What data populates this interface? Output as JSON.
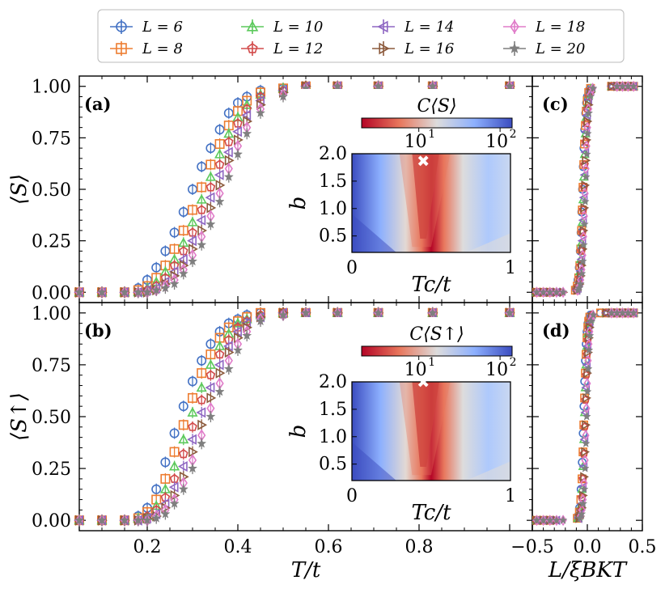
{
  "legend": {
    "entries": [
      {
        "label": "L = 6",
        "color": "#4472C4",
        "marker": "circle"
      },
      {
        "label": "L = 8",
        "color": "#ED7D31",
        "marker": "square"
      },
      {
        "label": "L = 10",
        "color": "#5CC95C",
        "marker": "triangle-up"
      },
      {
        "label": "L = 12",
        "color": "#D24B4B",
        "marker": "pentagon"
      },
      {
        "label": "L = 14",
        "color": "#8E66C2",
        "marker": "triangle-left"
      },
      {
        "label": "L = 16",
        "color": "#8C5A3C",
        "marker": "triangle-right"
      },
      {
        "label": "L = 18",
        "color": "#E07CC9",
        "marker": "diamond"
      },
      {
        "label": "L = 20",
        "color": "#7F7F7F",
        "marker": "star"
      }
    ]
  },
  "chart_data": [
    {
      "id": "a",
      "type": "scatter",
      "panel_label": "(a)",
      "ylabel": "⟨S⟩",
      "xlabel": "T/t",
      "xlim": [
        0.05,
        1.05
      ],
      "ylim": [
        -0.05,
        1.05
      ],
      "xticks": [
        "0.2",
        "0.4",
        "0.6",
        "0.8"
      ],
      "yticks": [
        "0.00",
        "0.25",
        "0.50",
        "0.75",
        "1.00"
      ],
      "series": [
        {
          "name": "L = 6",
          "x": [
            0.05,
            0.1,
            0.15,
            0.18,
            0.2,
            0.22,
            0.24,
            0.26,
            0.28,
            0.3,
            0.32,
            0.34,
            0.36,
            0.38,
            0.4,
            0.42,
            0.45,
            0.5,
            0.55,
            0.62,
            0.71,
            0.83,
            1.0
          ],
          "y": [
            0.0,
            0.0,
            0.0,
            0.02,
            0.06,
            0.12,
            0.2,
            0.29,
            0.39,
            0.5,
            0.61,
            0.7,
            0.79,
            0.87,
            0.92,
            0.95,
            0.98,
            0.99,
            1.0,
            1.0,
            1.0,
            1.0,
            1.0
          ]
        },
        {
          "name": "L = 8",
          "x": [
            0.05,
            0.1,
            0.15,
            0.18,
            0.2,
            0.22,
            0.24,
            0.26,
            0.28,
            0.3,
            0.32,
            0.34,
            0.36,
            0.38,
            0.4,
            0.42,
            0.45,
            0.5,
            0.55,
            0.62,
            0.71,
            0.83,
            1.0
          ],
          "y": [
            0.0,
            0.0,
            0.0,
            0.01,
            0.03,
            0.07,
            0.13,
            0.21,
            0.3,
            0.4,
            0.51,
            0.62,
            0.72,
            0.81,
            0.88,
            0.93,
            0.97,
            0.99,
            1.0,
            1.0,
            1.0,
            1.0,
            1.0
          ]
        },
        {
          "name": "L = 10",
          "x": [
            0.05,
            0.1,
            0.15,
            0.18,
            0.2,
            0.22,
            0.24,
            0.26,
            0.28,
            0.3,
            0.32,
            0.34,
            0.36,
            0.38,
            0.4,
            0.42,
            0.45,
            0.5,
            0.55,
            0.62,
            0.71,
            0.83,
            1.0
          ],
          "y": [
            0.0,
            0.0,
            0.0,
            0.0,
            0.02,
            0.05,
            0.1,
            0.16,
            0.24,
            0.34,
            0.45,
            0.56,
            0.67,
            0.77,
            0.85,
            0.91,
            0.96,
            0.99,
            1.0,
            1.0,
            1.0,
            1.0,
            1.0
          ]
        },
        {
          "name": "L = 12",
          "x": [
            0.05,
            0.1,
            0.15,
            0.18,
            0.2,
            0.22,
            0.24,
            0.26,
            0.28,
            0.3,
            0.32,
            0.34,
            0.36,
            0.38,
            0.4,
            0.42,
            0.45,
            0.5,
            0.55,
            0.62,
            0.71,
            0.83,
            1.0
          ],
          "y": [
            0.0,
            0.0,
            0.0,
            0.0,
            0.01,
            0.03,
            0.07,
            0.13,
            0.2,
            0.29,
            0.4,
            0.51,
            0.62,
            0.73,
            0.82,
            0.89,
            0.95,
            0.98,
            1.0,
            1.0,
            1.0,
            1.0,
            1.0
          ]
        },
        {
          "name": "L = 14",
          "x": [
            0.05,
            0.1,
            0.15,
            0.18,
            0.2,
            0.22,
            0.24,
            0.26,
            0.28,
            0.3,
            0.32,
            0.34,
            0.36,
            0.38,
            0.4,
            0.42,
            0.45,
            0.5,
            0.55,
            0.62,
            0.71,
            0.83,
            1.0
          ],
          "y": [
            0.0,
            0.0,
            0.0,
            0.0,
            0.01,
            0.02,
            0.05,
            0.1,
            0.16,
            0.25,
            0.35,
            0.46,
            0.57,
            0.68,
            0.78,
            0.86,
            0.93,
            0.98,
            1.0,
            1.0,
            1.0,
            1.0,
            1.0
          ]
        },
        {
          "name": "L = 16",
          "x": [
            0.05,
            0.1,
            0.15,
            0.18,
            0.2,
            0.22,
            0.24,
            0.26,
            0.28,
            0.3,
            0.32,
            0.34,
            0.36,
            0.38,
            0.4,
            0.42,
            0.45,
            0.5,
            0.55,
            0.62,
            0.71,
            0.83,
            1.0
          ],
          "y": [
            0.0,
            0.0,
            0.0,
            0.0,
            0.0,
            0.01,
            0.04,
            0.08,
            0.13,
            0.21,
            0.3,
            0.41,
            0.52,
            0.64,
            0.74,
            0.83,
            0.91,
            0.97,
            1.0,
            1.0,
            1.0,
            1.0,
            1.0
          ]
        },
        {
          "name": "L = 18",
          "x": [
            0.05,
            0.1,
            0.15,
            0.18,
            0.2,
            0.22,
            0.24,
            0.26,
            0.28,
            0.3,
            0.32,
            0.34,
            0.36,
            0.38,
            0.4,
            0.42,
            0.45,
            0.5,
            0.55,
            0.62,
            0.71,
            0.83,
            1.0
          ],
          "y": [
            0.0,
            0.0,
            0.0,
            0.0,
            0.0,
            0.01,
            0.03,
            0.06,
            0.11,
            0.18,
            0.27,
            0.37,
            0.48,
            0.6,
            0.71,
            0.8,
            0.89,
            0.96,
            0.99,
            1.0,
            1.0,
            1.0,
            1.0
          ]
        },
        {
          "name": "L = 20",
          "x": [
            0.05,
            0.1,
            0.15,
            0.18,
            0.2,
            0.22,
            0.24,
            0.26,
            0.28,
            0.3,
            0.32,
            0.34,
            0.36,
            0.38,
            0.4,
            0.42,
            0.45,
            0.5,
            0.55,
            0.62,
            0.71,
            0.83,
            1.0
          ],
          "y": [
            0.0,
            0.0,
            0.0,
            0.0,
            0.0,
            0.01,
            0.02,
            0.04,
            0.09,
            0.15,
            0.23,
            0.33,
            0.44,
            0.56,
            0.67,
            0.77,
            0.87,
            0.95,
            0.99,
            1.0,
            1.0,
            1.0,
            1.0
          ]
        }
      ]
    },
    {
      "id": "b",
      "type": "scatter",
      "panel_label": "(b)",
      "ylabel": "⟨S↑⟩",
      "xlabel": "T/t",
      "xlim": [
        0.05,
        1.05
      ],
      "ylim": [
        -0.05,
        1.05
      ],
      "xticks": [
        "0.2",
        "0.4",
        "0.6",
        "0.8"
      ],
      "yticks": [
        "0.00",
        "0.25",
        "0.50",
        "0.75",
        "1.00"
      ],
      "series": [
        {
          "name": "L = 6",
          "x": [
            0.05,
            0.1,
            0.15,
            0.18,
            0.2,
            0.22,
            0.24,
            0.26,
            0.28,
            0.3,
            0.32,
            0.34,
            0.36,
            0.38,
            0.4,
            0.42,
            0.45,
            0.5,
            0.55,
            0.62,
            0.71,
            0.83,
            1.0
          ],
          "y": [
            0.0,
            0.0,
            0.0,
            0.02,
            0.06,
            0.15,
            0.28,
            0.42,
            0.55,
            0.67,
            0.77,
            0.85,
            0.91,
            0.95,
            0.97,
            0.99,
            1.0,
            1.0,
            1.0,
            1.0,
            1.0,
            1.0,
            1.0
          ]
        },
        {
          "name": "L = 8",
          "x": [
            0.05,
            0.1,
            0.15,
            0.18,
            0.2,
            0.22,
            0.24,
            0.26,
            0.28,
            0.3,
            0.32,
            0.34,
            0.36,
            0.38,
            0.4,
            0.42,
            0.45,
            0.5,
            0.55,
            0.62,
            0.71,
            0.83,
            1.0
          ],
          "y": [
            0.0,
            0.0,
            0.0,
            0.01,
            0.04,
            0.1,
            0.2,
            0.33,
            0.46,
            0.59,
            0.71,
            0.8,
            0.88,
            0.93,
            0.96,
            0.98,
            1.0,
            1.0,
            1.0,
            1.0,
            1.0,
            1.0,
            1.0
          ]
        },
        {
          "name": "L = 10",
          "x": [
            0.05,
            0.1,
            0.15,
            0.18,
            0.2,
            0.22,
            0.24,
            0.26,
            0.28,
            0.3,
            0.32,
            0.34,
            0.36,
            0.38,
            0.4,
            0.42,
            0.45,
            0.5,
            0.55,
            0.62,
            0.71,
            0.83,
            1.0
          ],
          "y": [
            0.0,
            0.0,
            0.0,
            0.01,
            0.02,
            0.07,
            0.15,
            0.26,
            0.39,
            0.52,
            0.64,
            0.75,
            0.84,
            0.9,
            0.95,
            0.97,
            0.99,
            1.0,
            1.0,
            1.0,
            1.0,
            1.0,
            1.0
          ]
        },
        {
          "name": "L = 12",
          "x": [
            0.05,
            0.1,
            0.15,
            0.18,
            0.2,
            0.22,
            0.24,
            0.26,
            0.28,
            0.3,
            0.32,
            0.34,
            0.36,
            0.38,
            0.4,
            0.42,
            0.45,
            0.5,
            0.55,
            0.62,
            0.71,
            0.83,
            1.0
          ],
          "y": [
            0.0,
            0.0,
            0.0,
            0.0,
            0.02,
            0.05,
            0.11,
            0.2,
            0.32,
            0.45,
            0.58,
            0.7,
            0.8,
            0.87,
            0.93,
            0.96,
            0.99,
            1.0,
            1.0,
            1.0,
            1.0,
            1.0,
            1.0
          ]
        },
        {
          "name": "L = 14",
          "x": [
            0.05,
            0.1,
            0.15,
            0.18,
            0.2,
            0.22,
            0.24,
            0.26,
            0.28,
            0.3,
            0.32,
            0.34,
            0.36,
            0.38,
            0.4,
            0.42,
            0.45,
            0.5,
            0.55,
            0.62,
            0.71,
            0.83,
            1.0
          ],
          "y": [
            0.0,
            0.0,
            0.0,
            0.0,
            0.01,
            0.03,
            0.08,
            0.16,
            0.26,
            0.39,
            0.52,
            0.64,
            0.75,
            0.84,
            0.91,
            0.95,
            0.98,
            1.0,
            1.0,
            1.0,
            1.0,
            1.0,
            1.0
          ]
        },
        {
          "name": "L = 16",
          "x": [
            0.05,
            0.1,
            0.15,
            0.18,
            0.2,
            0.22,
            0.24,
            0.26,
            0.28,
            0.3,
            0.32,
            0.34,
            0.36,
            0.38,
            0.4,
            0.42,
            0.45,
            0.5,
            0.55,
            0.62,
            0.71,
            0.83,
            1.0
          ],
          "y": [
            0.0,
            0.0,
            0.0,
            0.0,
            0.01,
            0.02,
            0.06,
            0.12,
            0.21,
            0.33,
            0.46,
            0.59,
            0.71,
            0.81,
            0.88,
            0.93,
            0.98,
            1.0,
            1.0,
            1.0,
            1.0,
            1.0,
            1.0
          ]
        },
        {
          "name": "L = 18",
          "x": [
            0.05,
            0.1,
            0.15,
            0.18,
            0.2,
            0.22,
            0.24,
            0.26,
            0.28,
            0.3,
            0.32,
            0.34,
            0.36,
            0.38,
            0.4,
            0.42,
            0.45,
            0.5,
            0.55,
            0.62,
            0.71,
            0.83,
            1.0
          ],
          "y": [
            0.0,
            0.0,
            0.0,
            0.0,
            0.0,
            0.02,
            0.05,
            0.1,
            0.18,
            0.29,
            0.41,
            0.54,
            0.66,
            0.77,
            0.85,
            0.91,
            0.97,
            0.99,
            1.0,
            1.0,
            1.0,
            1.0,
            1.0
          ]
        },
        {
          "name": "L = 20",
          "x": [
            0.05,
            0.1,
            0.15,
            0.18,
            0.2,
            0.22,
            0.24,
            0.26,
            0.28,
            0.3,
            0.32,
            0.34,
            0.36,
            0.38,
            0.4,
            0.42,
            0.45,
            0.5,
            0.55,
            0.62,
            0.71,
            0.83,
            1.0
          ],
          "y": [
            0.0,
            0.0,
            0.0,
            0.0,
            0.0,
            0.01,
            0.03,
            0.08,
            0.15,
            0.25,
            0.37,
            0.5,
            0.62,
            0.73,
            0.82,
            0.89,
            0.96,
            0.99,
            1.0,
            1.0,
            1.0,
            1.0,
            1.0
          ]
        }
      ]
    },
    {
      "id": "c",
      "type": "scatter",
      "panel_label": "(c)",
      "xlabel": "L/ξBKT",
      "xlim": [
        -0.5,
        0.5
      ],
      "ylim": [
        -0.05,
        1.05
      ],
      "xticks": [
        "−0.5",
        "0.0",
        "0.5"
      ],
      "collapse_center": -0.03,
      "collapse_width": 0.045
    },
    {
      "id": "d",
      "type": "scatter",
      "panel_label": "(d)",
      "xlabel": "L/ξBKT",
      "xlim": [
        -0.5,
        0.5
      ],
      "ylim": [
        -0.05,
        1.05
      ],
      "xticks": [
        "−0.5",
        "0.0",
        "0.5"
      ],
      "collapse_center": -0.02,
      "collapse_width": 0.04
    },
    {
      "id": "inset-a",
      "type": "heatmap",
      "colorbar_label": "C⟨S⟩",
      "colorbar_ticks": [
        "10",
        "10"
      ],
      "colorbar_exps": [
        "1",
        "2"
      ],
      "xlabel": "Tc/t",
      "ylabel": "b",
      "xlim": [
        0,
        1
      ],
      "ylim": [
        0.2,
        2.0
      ],
      "xticks": [
        "0",
        "1"
      ],
      "yticks": [
        "0.5",
        "1.0",
        "1.5",
        "2.0"
      ],
      "marker": {
        "x": 0.45,
        "y": 1.87
      }
    },
    {
      "id": "inset-b",
      "type": "heatmap",
      "colorbar_label": "C⟨S↑⟩",
      "colorbar_ticks": [
        "10",
        "10"
      ],
      "colorbar_exps": [
        "1",
        "2"
      ],
      "xlabel": "Tc/t",
      "ylabel": "b",
      "xlim": [
        0,
        1
      ],
      "ylim": [
        0.2,
        2.0
      ],
      "xticks": [
        "0",
        "1"
      ],
      "yticks": [
        "0.5",
        "1.0",
        "1.5",
        "2.0"
      ],
      "marker": {
        "x": 0.45,
        "y": 2.0
      }
    }
  ]
}
